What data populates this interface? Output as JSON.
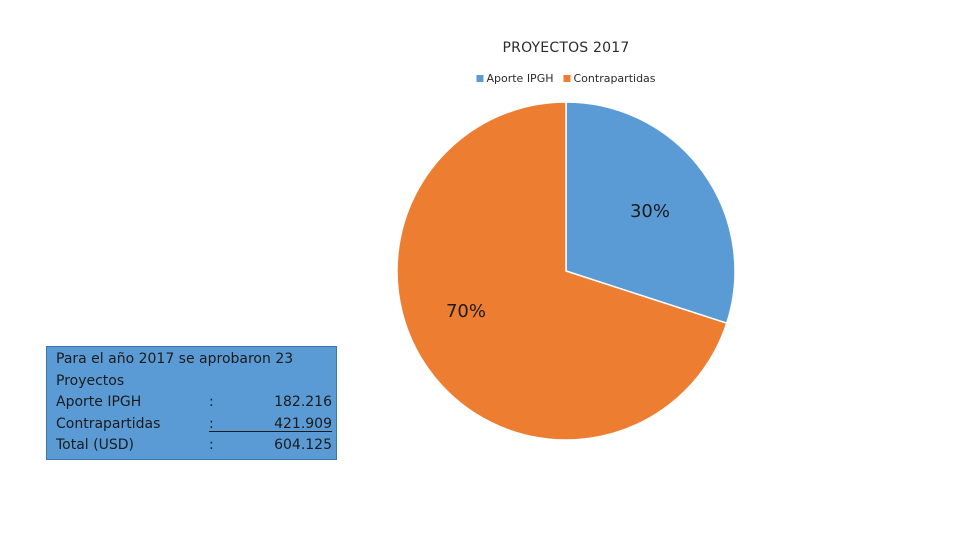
{
  "chart_data": {
    "type": "pie",
    "title": "PROYECTOS 2017",
    "labels": [
      "Aporte IPGH",
      "Contrapartidas"
    ],
    "values": [
      30,
      70
    ],
    "data_labels": [
      "30%",
      "70%"
    ],
    "colors": [
      "#5b9bd5",
      "#ed7d31"
    ],
    "legend": "top"
  },
  "info_box": {
    "line1": "Para el año 2017 se aprobaron 23",
    "line2": "Proyectos",
    "rows": [
      {
        "label": "Aporte IPGH",
        "colon": ":",
        "value": "182.216"
      },
      {
        "label": "Contrapartidas",
        "colon": ":",
        "value": "421.909"
      },
      {
        "label": "Total (USD)",
        "colon": ":",
        "value": "604.125"
      }
    ]
  }
}
